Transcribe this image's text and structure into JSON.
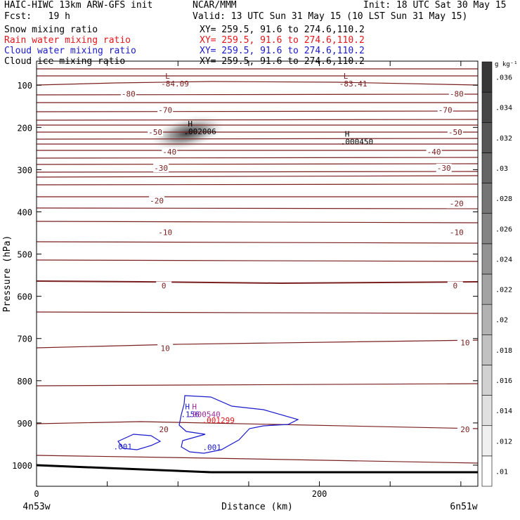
{
  "header": {
    "model": "HAIC-HIWC 13km ARW-GFS init",
    "org": "NCAR/MMM",
    "init": "Init: 18 UTC Sat 30 May 15",
    "fcst": "Fcst:   19 h",
    "valid": "Valid: 13 UTC Sun 31 May 15 (10 LST Sun 31 May 15)",
    "fields": [
      {
        "label": "Snow mixing ratio",
        "xy": "XY= 259.5, 91.6 to 274.6,110.2",
        "color": "#000000"
      },
      {
        "label": "Rain water mixing ratio",
        "xy": "XY= 259.5, 91.6 to 274.6,110.2",
        "color": "#e8141a"
      },
      {
        "label": "Cloud water mixing ratio",
        "xy": "XY= 259.5, 91.6 to 274.6,110.2",
        "color": "#1a1acc"
      },
      {
        "label": "Cloud ice mixing ratio",
        "xy": "XY= 259.5, 91.6 to 274.6,110.2",
        "color": "#000000"
      }
    ]
  },
  "chart_data": {
    "type": "heatmap",
    "xlabel": "Distance (km)",
    "ylabel": "Pressure (hPa)",
    "xlim": [
      0,
      312
    ],
    "ylim": [
      1050,
      43
    ],
    "x_ticks": [
      0,
      200
    ],
    "y_ticks": [
      100,
      200,
      300,
      400,
      500,
      600,
      700,
      800,
      900,
      1000
    ],
    "x_end_labels": {
      "left": "4n53w",
      "right": "6n51w"
    },
    "colorbar": {
      "unit": "g kg⁻¹",
      "levels": [
        0.01,
        0.012,
        0.014,
        0.016,
        0.018,
        0.02,
        0.022,
        0.024,
        0.026,
        0.028,
        0.03,
        0.032,
        0.034,
        0.036
      ],
      "labels": [
        ".01",
        ".012",
        ".014",
        ".016",
        ".018",
        ".02",
        ".022",
        ".024",
        ".026",
        ".028",
        ".03",
        ".032",
        ".034",
        ".036"
      ]
    },
    "temperature_contour_color": "#7a1f1f",
    "temperature_contour_labels": [
      {
        "x": 65,
        "p": 120,
        "text": "-80"
      },
      {
        "x": 297,
        "p": 120,
        "text": "-80"
      },
      {
        "x": 91,
        "p": 159,
        "text": "-70"
      },
      {
        "x": 289,
        "p": 159,
        "text": "-70"
      },
      {
        "x": 84,
        "p": 211,
        "text": "-50"
      },
      {
        "x": 296,
        "p": 211,
        "text": "-50"
      },
      {
        "x": 94,
        "p": 258,
        "text": "-40"
      },
      {
        "x": 281,
        "p": 258,
        "text": "-40"
      },
      {
        "x": 88,
        "p": 296,
        "text": "-30"
      },
      {
        "x": 288,
        "p": 296,
        "text": "-30"
      },
      {
        "x": 85,
        "p": 373,
        "text": "-20"
      },
      {
        "x": 297,
        "p": 380,
        "text": "-20"
      },
      {
        "x": 91,
        "p": 448,
        "text": "-10"
      },
      {
        "x": 297,
        "p": 448,
        "text": "-10"
      },
      {
        "x": 90,
        "p": 575,
        "text": "0"
      },
      {
        "x": 296,
        "p": 575,
        "text": "0"
      },
      {
        "x": 91,
        "p": 723,
        "text": "10"
      },
      {
        "x": 303,
        "p": 710,
        "text": "10"
      },
      {
        "x": 90,
        "p": 915,
        "text": "20"
      },
      {
        "x": 303,
        "p": 915,
        "text": "20"
      }
    ],
    "extrema": [
      {
        "x": 91,
        "p": 85,
        "mark": "L",
        "value": "-84.09",
        "color": "#7a1f1f"
      },
      {
        "x": 217,
        "p": 85,
        "mark": "L",
        "value": "-83.41",
        "color": "#7a1f1f"
      },
      {
        "x": 107,
        "p": 198,
        "mark": "H",
        "value": ".002006",
        "color": "#000000"
      },
      {
        "x": 218,
        "p": 222,
        "mark": "H",
        "value": ".000450",
        "color": "#000000"
      },
      {
        "x": 105,
        "p": 868,
        "mark": "H",
        "value": ".156",
        "color": "#1a1acc"
      },
      {
        "x": 110,
        "p": 868,
        "mark": "H",
        "value": ".000540",
        "color": "#9b2a9b"
      },
      {
        "x": 120,
        "p": 882,
        "mark": "",
        "value": ".001299",
        "color": "#e8141a"
      }
    ],
    "cloud_contour_labels": [
      {
        "x": 61,
        "p": 956,
        "text": ".001"
      },
      {
        "x": 124,
        "p": 958,
        "text": ".001"
      }
    ],
    "shaded_max": {
      "x": 107,
      "p": 213,
      "value": 0.036
    }
  }
}
